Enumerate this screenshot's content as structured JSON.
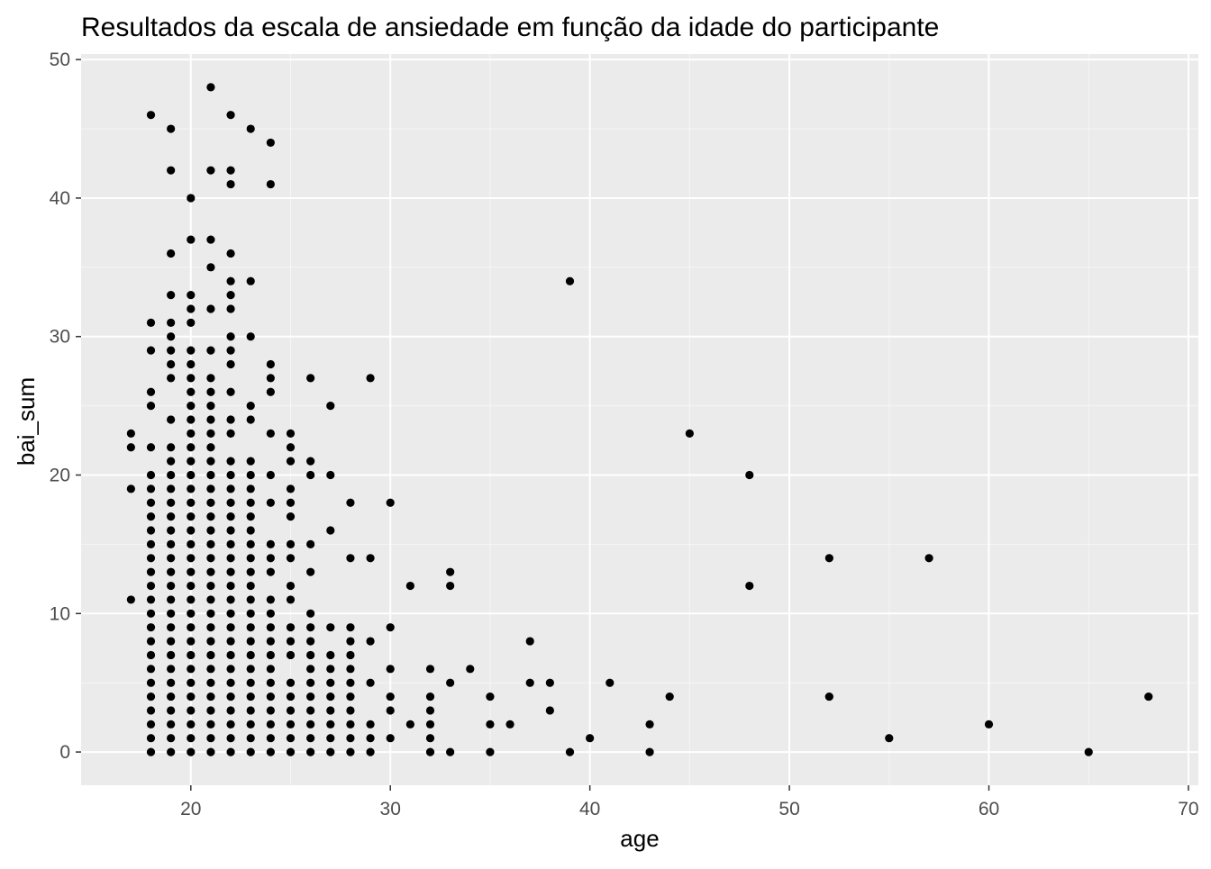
{
  "chart_data": {
    "type": "scatter",
    "title": "Resultados da escala de ansiedade em função da idade do participante",
    "xlabel": "age",
    "ylabel": "bai_sum",
    "xlim": [
      14.5,
      70.5
    ],
    "ylim": [
      -2.4,
      50.4
    ],
    "xticks": [
      20,
      30,
      40,
      50,
      60,
      70
    ],
    "yticks": [
      0,
      10,
      20,
      30,
      40,
      50
    ],
    "grid": true,
    "legend": "none",
    "colors": {
      "panel": "#EBEBEB",
      "grid_major": "#FFFFFF",
      "point": "#000000",
      "axis_text": "#4D4D4D",
      "title": "#000000"
    },
    "points_by_age": [
      {
        "age": 17,
        "bai_sum": [
          23,
          22,
          19,
          11
        ]
      },
      {
        "age": 18,
        "bai_sum": [
          46,
          31,
          29,
          26,
          25,
          22,
          20,
          19,
          18,
          17,
          16,
          15,
          14,
          13,
          12,
          11,
          10,
          9,
          8,
          7,
          6,
          5,
          4,
          3,
          2,
          1,
          0
        ]
      },
      {
        "age": 19,
        "bai_sum": [
          45,
          42,
          36,
          33,
          31,
          30,
          29,
          28,
          27,
          24,
          22,
          21,
          20,
          19,
          18,
          17,
          16,
          15,
          14,
          13,
          12,
          11,
          10,
          9,
          8,
          7,
          6,
          5,
          4,
          3,
          2,
          1,
          0
        ]
      },
      {
        "age": 20,
        "bai_sum": [
          40,
          37,
          33,
          32,
          31,
          29,
          28,
          27,
          26,
          25,
          24,
          23,
          22,
          21,
          20,
          19,
          18,
          17,
          16,
          15,
          14,
          13,
          12,
          11,
          10,
          9,
          8,
          7,
          6,
          5,
          4,
          3,
          2,
          1,
          0
        ]
      },
      {
        "age": 21,
        "bai_sum": [
          48,
          42,
          37,
          35,
          32,
          29,
          27,
          26,
          25,
          24,
          23,
          22,
          21,
          20,
          19,
          18,
          17,
          16,
          15,
          14,
          13,
          12,
          11,
          10,
          9,
          8,
          7,
          6,
          5,
          4,
          3,
          2,
          1,
          0
        ]
      },
      {
        "age": 22,
        "bai_sum": [
          46,
          42,
          41,
          36,
          34,
          33,
          32,
          30,
          29,
          28,
          26,
          24,
          23,
          21,
          20,
          19,
          18,
          17,
          16,
          15,
          14,
          13,
          12,
          11,
          10,
          9,
          8,
          7,
          6,
          5,
          4,
          3,
          2,
          1,
          0
        ]
      },
      {
        "age": 23,
        "bai_sum": [
          45,
          34,
          30,
          25,
          24,
          21,
          20,
          19,
          18,
          17,
          16,
          15,
          14,
          13,
          12,
          11,
          10,
          9,
          8,
          7,
          6,
          5,
          4,
          3,
          2,
          1,
          0
        ]
      },
      {
        "age": 24,
        "bai_sum": [
          44,
          41,
          28,
          27,
          26,
          23,
          20,
          18,
          15,
          14,
          13,
          11,
          10,
          9,
          8,
          7,
          6,
          5,
          4,
          3,
          2,
          1,
          0
        ]
      },
      {
        "age": 25,
        "bai_sum": [
          23,
          22,
          21,
          19,
          18,
          17,
          15,
          14,
          12,
          11,
          9,
          8,
          7,
          5,
          4,
          3,
          2,
          1,
          0
        ]
      },
      {
        "age": 26,
        "bai_sum": [
          27,
          21,
          20,
          15,
          13,
          10,
          9,
          8,
          7,
          6,
          5,
          4,
          3,
          2,
          1,
          0
        ]
      },
      {
        "age": 27,
        "bai_sum": [
          25,
          20,
          16,
          9,
          7,
          6,
          5,
          4,
          3,
          2,
          1,
          0
        ]
      },
      {
        "age": 28,
        "bai_sum": [
          18,
          14,
          9,
          8,
          7,
          6,
          5,
          4,
          3,
          2,
          1,
          0
        ]
      },
      {
        "age": 29,
        "bai_sum": [
          27,
          14,
          8,
          5,
          2,
          1,
          0
        ]
      },
      {
        "age": 30,
        "bai_sum": [
          18,
          9,
          6,
          4,
          3,
          1
        ]
      },
      {
        "age": 31,
        "bai_sum": [
          12,
          2
        ]
      },
      {
        "age": 32,
        "bai_sum": [
          6,
          4,
          3,
          2,
          1,
          0
        ]
      },
      {
        "age": 33,
        "bai_sum": [
          13,
          12,
          5,
          0
        ]
      },
      {
        "age": 34,
        "bai_sum": [
          6
        ]
      },
      {
        "age": 35,
        "bai_sum": [
          4,
          2,
          0
        ]
      },
      {
        "age": 36,
        "bai_sum": [
          2
        ]
      },
      {
        "age": 37,
        "bai_sum": [
          8,
          5
        ]
      },
      {
        "age": 38,
        "bai_sum": [
          5,
          3
        ]
      },
      {
        "age": 39,
        "bai_sum": [
          34,
          0
        ]
      },
      {
        "age": 40,
        "bai_sum": [
          1
        ]
      },
      {
        "age": 41,
        "bai_sum": [
          5
        ]
      },
      {
        "age": 43,
        "bai_sum": [
          2,
          0
        ]
      },
      {
        "age": 44,
        "bai_sum": [
          4
        ]
      },
      {
        "age": 45,
        "bai_sum": [
          23
        ]
      },
      {
        "age": 48,
        "bai_sum": [
          20,
          12
        ]
      },
      {
        "age": 52,
        "bai_sum": [
          14,
          4
        ]
      },
      {
        "age": 55,
        "bai_sum": [
          1
        ]
      },
      {
        "age": 57,
        "bai_sum": [
          14
        ]
      },
      {
        "age": 60,
        "bai_sum": [
          2
        ]
      },
      {
        "age": 65,
        "bai_sum": [
          0
        ]
      },
      {
        "age": 68,
        "bai_sum": [
          4
        ]
      }
    ]
  }
}
